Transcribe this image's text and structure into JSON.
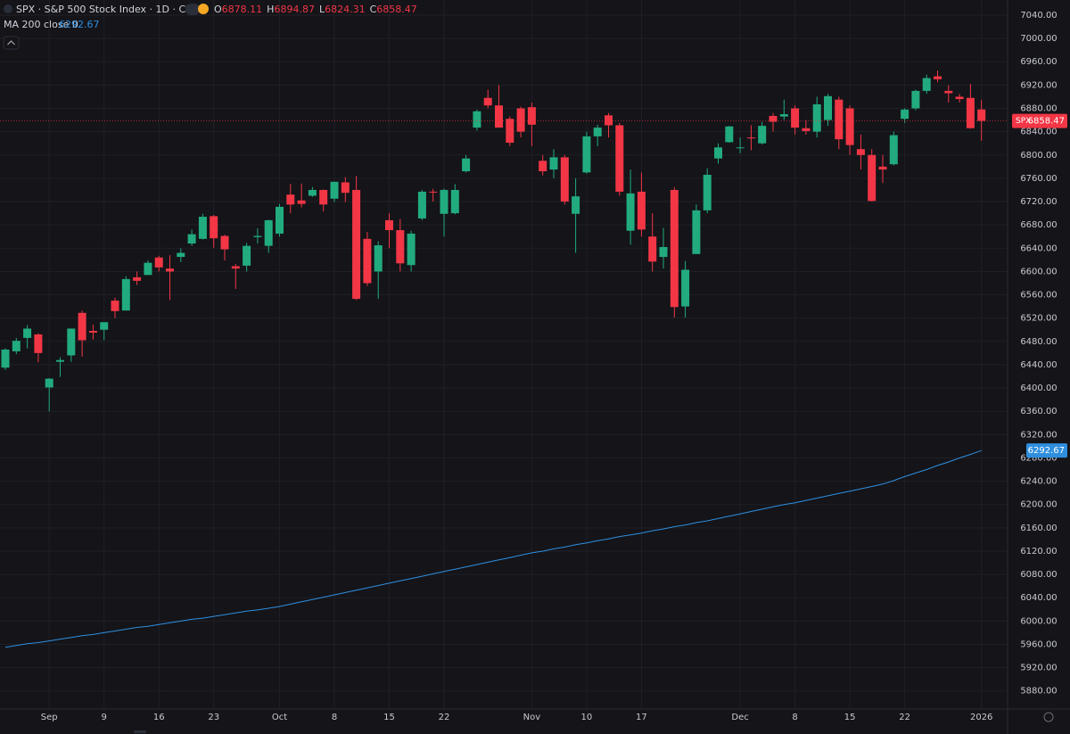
{
  "chart_data": {
    "type": "candlestick",
    "title": "SPX · S&P 500 Stock Index · 1D · CBOE",
    "ohlc_labels": [
      "O",
      "H",
      "L",
      "C"
    ],
    "up_color": "#22ab7e",
    "down_color": "#f23645",
    "grid": true,
    "categories": [
      null,
      null,
      null,
      null,
      "Sep",
      null,
      null,
      null,
      null,
      "9",
      null,
      null,
      null,
      null,
      "16",
      null,
      null,
      null,
      null,
      "23",
      null,
      null,
      null,
      null,
      null,
      "Oct",
      null,
      null,
      null,
      null,
      "8",
      null,
      null,
      null,
      null,
      "15",
      null,
      null,
      null,
      null,
      "22",
      null,
      null,
      null,
      null,
      null,
      null,
      null,
      "Nov",
      null,
      null,
      null,
      null,
      "10",
      null,
      null,
      null,
      null,
      "17",
      null,
      null,
      null,
      null,
      null,
      null,
      null,
      null,
      "Dec",
      null,
      null,
      null,
      null,
      "8",
      null,
      null,
      null,
      null,
      "15",
      null,
      null,
      null,
      null,
      "22",
      null,
      null,
      null,
      null,
      null,
      null,
      "2026"
    ],
    "series": [
      {
        "name": "SPX",
        "values": [
          [
            6435,
            6468,
            6431,
            6466
          ],
          [
            6463,
            6486,
            6458,
            6481
          ],
          [
            6486,
            6508,
            6468,
            6502
          ],
          [
            6492,
            6494,
            6444,
            6460
          ],
          [
            6401,
            6417,
            6360,
            6416
          ],
          [
            6445,
            6453,
            6419,
            6448
          ],
          [
            6456,
            6502,
            6445,
            6502
          ],
          [
            6529,
            6533,
            6454,
            6482
          ],
          [
            6498,
            6509,
            6483,
            6495
          ],
          [
            6500,
            6513,
            6482,
            6513
          ],
          [
            6550,
            6555,
            6520,
            6532
          ],
          [
            6533,
            6592,
            6533,
            6587
          ],
          [
            6590,
            6600,
            6577,
            6584
          ],
          [
            6594,
            6619,
            6594,
            6615
          ],
          [
            6624,
            6627,
            6600,
            6607
          ],
          [
            6605,
            6628,
            6551,
            6600
          ],
          [
            6625,
            6640,
            6616,
            6632
          ],
          [
            6648,
            6672,
            6644,
            6664
          ],
          [
            6656,
            6699,
            6655,
            6694
          ],
          [
            6695,
            6697,
            6641,
            6657
          ],
          [
            6661,
            6663,
            6619,
            6638
          ],
          [
            6609,
            6613,
            6570,
            6605
          ],
          [
            6610,
            6649,
            6600,
            6644
          ],
          [
            6659,
            6674,
            6648,
            6661
          ],
          [
            6644,
            6689,
            6632,
            6688
          ],
          [
            6665,
            6716,
            6660,
            6711
          ],
          [
            6732,
            6750,
            6700,
            6715
          ],
          [
            6722,
            6751,
            6710,
            6716
          ],
          [
            6730,
            6745,
            6728,
            6740
          ],
          [
            6740,
            6741,
            6703,
            6715
          ],
          [
            6725,
            6754,
            6719,
            6754
          ],
          [
            6753,
            6762,
            6719,
            6735
          ],
          [
            6740,
            6764,
            6551,
            6553
          ],
          [
            6656,
            6668,
            6575,
            6580
          ],
          [
            6600,
            6652,
            6553,
            6645
          ],
          [
            6688,
            6700,
            6640,
            6671
          ],
          [
            6671,
            6690,
            6600,
            6614
          ],
          [
            6611,
            6670,
            6600,
            6665
          ],
          [
            6691,
            6740,
            6688,
            6737
          ],
          [
            6737,
            6742,
            6720,
            6736
          ],
          [
            6699,
            6742,
            6660,
            6740
          ],
          [
            6700,
            6750,
            6698,
            6740
          ],
          [
            6772,
            6800,
            6770,
            6794
          ],
          [
            6847,
            6878,
            6842,
            6875
          ],
          [
            6898,
            6912,
            6880,
            6885
          ],
          [
            6885,
            6920,
            6850,
            6847
          ],
          [
            6862,
            6866,
            6815,
            6821
          ],
          [
            6880,
            6883,
            6830,
            6840
          ],
          [
            6882,
            6890,
            6815,
            6852
          ],
          [
            6790,
            6800,
            6765,
            6772
          ],
          [
            6775,
            6810,
            6760,
            6796
          ],
          [
            6796,
            6800,
            6715,
            6720
          ],
          [
            6699,
            6760,
            6632,
            6729
          ],
          [
            6770,
            6840,
            6768,
            6832
          ],
          [
            6832,
            6852,
            6815,
            6847
          ],
          [
            6868,
            6872,
            6830,
            6851
          ],
          [
            6851,
            6855,
            6730,
            6737
          ],
          [
            6670,
            6775,
            6646,
            6734
          ],
          [
            6737,
            6770,
            6660,
            6672
          ],
          [
            6660,
            6700,
            6600,
            6617
          ],
          [
            6625,
            6675,
            6605,
            6642
          ],
          [
            6740,
            6745,
            6521,
            6539
          ],
          [
            6540,
            6618,
            6521,
            6603
          ],
          [
            6630,
            6715,
            6630,
            6705
          ],
          [
            6705,
            6777,
            6700,
            6766
          ],
          [
            6794,
            6820,
            6785,
            6813
          ],
          [
            6822,
            6850,
            6821,
            6849
          ],
          [
            6812,
            6830,
            6803,
            6813
          ],
          [
            6830,
            6851,
            6808,
            6829
          ],
          [
            6820,
            6857,
            6818,
            6850
          ],
          [
            6867,
            6872,
            6840,
            6857
          ],
          [
            6866,
            6895,
            6860,
            6870
          ],
          [
            6880,
            6885,
            6835,
            6847
          ],
          [
            6846,
            6860,
            6835,
            6841
          ],
          [
            6840,
            6900,
            6830,
            6887
          ],
          [
            6860,
            6905,
            6850,
            6901
          ],
          [
            6895,
            6900,
            6810,
            6827
          ],
          [
            6880,
            6885,
            6800,
            6817
          ],
          [
            6810,
            6835,
            6775,
            6800
          ],
          [
            6800,
            6810,
            6720,
            6721
          ],
          [
            6780,
            6800,
            6752,
            6775
          ],
          [
            6784,
            6840,
            6782,
            6834
          ],
          [
            6862,
            6880,
            6855,
            6878
          ],
          [
            6880,
            6912,
            6877,
            6910
          ],
          [
            6910,
            6938,
            6905,
            6932
          ],
          [
            6935,
            6945,
            6925,
            6930
          ],
          [
            6910,
            6920,
            6890,
            6906
          ],
          [
            6900,
            6905,
            6890,
            6896
          ],
          [
            6898,
            6922,
            6845,
            6846
          ],
          [
            6878.11,
            6894.87,
            6824.31,
            6858.47
          ]
        ]
      },
      {
        "name": "MA 200 close 0",
        "color": "#2f8fdf",
        "values": [
          5955,
          5958,
          5961,
          5963,
          5966,
          5969,
          5972,
          5975,
          5977,
          5980,
          5983,
          5986,
          5989,
          5991,
          5994,
          5997,
          6000,
          6003,
          6005,
          6008,
          6011,
          6014,
          6017,
          6019,
          6022,
          6025,
          6029,
          6033,
          6037,
          6041,
          6045,
          6049,
          6053,
          6057,
          6061,
          6065,
          6069,
          6073,
          6077,
          6081,
          6085,
          6089,
          6093,
          6097,
          6101,
          6105,
          6109,
          6113,
          6117,
          6120,
          6124,
          6127,
          6131,
          6134,
          6138,
          6141,
          6145,
          6148,
          6151,
          6155,
          6158,
          6162,
          6165,
          6169,
          6172,
          6176,
          6180,
          6184,
          6188,
          6192,
          6196,
          6200,
          6203,
          6207,
          6211,
          6215,
          6219,
          6223,
          6227,
          6231,
          6235,
          6241,
          6248,
          6254,
          6260,
          6267,
          6273,
          6280,
          6286,
          6292.67
        ]
      }
    ],
    "ylim": [
      5849,
      7066
    ],
    "yticks": [
      {
        "value": 5880,
        "label": "5880.00"
      },
      {
        "value": 5920,
        "label": "5920.00"
      },
      {
        "value": 5960,
        "label": "5960.00"
      },
      {
        "value": 6000,
        "label": "6000.00"
      },
      {
        "value": 6040,
        "label": "6040.00"
      },
      {
        "value": 6080,
        "label": "6080.00"
      },
      {
        "value": 6120,
        "label": "6120.00"
      },
      {
        "value": 6160,
        "label": "6160.00"
      },
      {
        "value": 6200,
        "label": "6200.00"
      },
      {
        "value": 6240,
        "label": "6240.00"
      },
      {
        "value": 6280,
        "label": "6280.00"
      },
      {
        "value": 6320,
        "label": "6320.00"
      },
      {
        "value": 6360,
        "label": "6360.00"
      },
      {
        "value": 6400,
        "label": "6400.00"
      },
      {
        "value": 6440,
        "label": "6440.00"
      },
      {
        "value": 6480,
        "label": "6480.00"
      },
      {
        "value": 6520,
        "label": "6520.00"
      },
      {
        "value": 6560,
        "label": "6560.00"
      },
      {
        "value": 6600,
        "label": "6600.00"
      },
      {
        "value": 6640,
        "label": "6640.00"
      },
      {
        "value": 6680,
        "label": "6680.00"
      },
      {
        "value": 6720,
        "label": "6720.00"
      },
      {
        "value": 6760,
        "label": "6760.00"
      },
      {
        "value": 6800,
        "label": "6800.00"
      },
      {
        "value": 6840,
        "label": "6840.00"
      },
      {
        "value": 6880,
        "label": "6880.00"
      },
      {
        "value": 6920,
        "label": "6920.00"
      },
      {
        "value": 6960,
        "label": "6960.00"
      },
      {
        "value": 7000,
        "label": "7000.00"
      },
      {
        "value": 7040,
        "label": "7040.00"
      }
    ]
  }
}
